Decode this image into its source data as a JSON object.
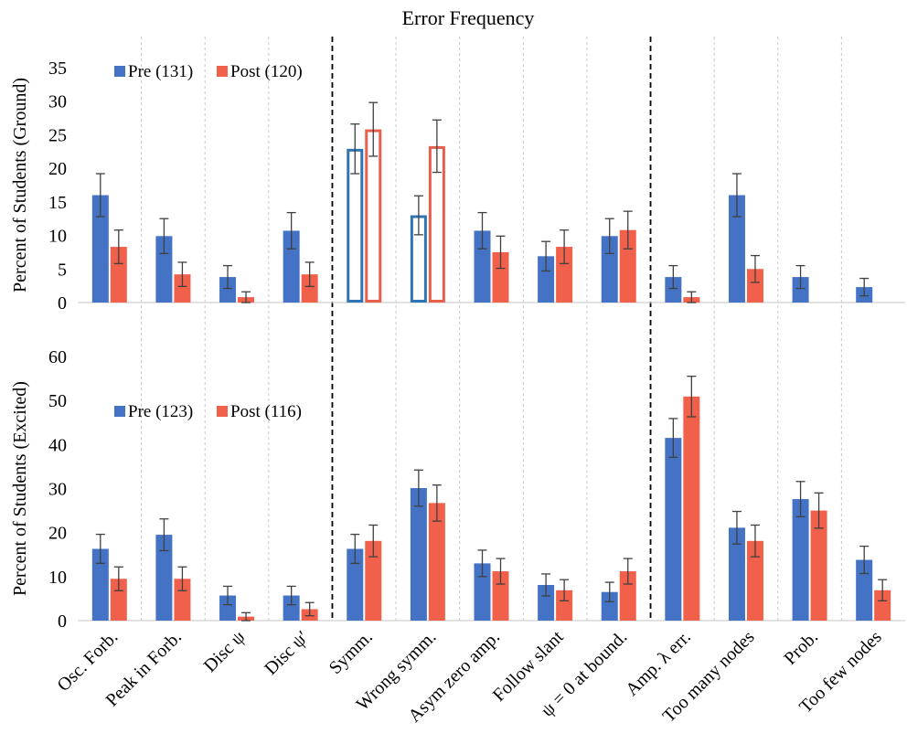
{
  "chart_data": {
    "type": "bar",
    "title": "Error Frequency",
    "categories": [
      "Osc. Forb.",
      "Peak in Forb.",
      "Disc ψ",
      "Disc ψ′",
      "Symm.",
      "Wrong symm.",
      "Asym zero amp.",
      "Follow slant",
      "ψ = 0 at bound.",
      "Amp. λ err.",
      "Too many nodes",
      "Prob.",
      "Too few nodes"
    ],
    "group_separators_after": [
      "Disc ψ′",
      "ψ = 0 at bound."
    ],
    "colors": {
      "pre": "#4472c4",
      "post": "#f0604a",
      "pre_outline": "#2e75b6",
      "post_outline": "#e8604c"
    },
    "panels": [
      {
        "ylabel": "Percent of Students (Ground)",
        "ylim": [
          0,
          35
        ],
        "yticks": [
          0,
          5,
          10,
          15,
          20,
          25,
          30,
          35
        ],
        "grid": false,
        "legend_position": "top-left",
        "outlined_categories": [
          "Symm.",
          "Wrong symm."
        ],
        "series": [
          {
            "name": "Pre (131)",
            "values": [
              16.0,
              9.9,
              3.8,
              10.7,
              22.9,
              13.0,
              10.7,
              6.9,
              9.9,
              3.8,
              16.0,
              3.8,
              2.3
            ],
            "errors": [
              3.2,
              2.6,
              1.7,
              2.7,
              3.7,
              2.9,
              2.7,
              2.2,
              2.6,
              1.7,
              3.2,
              1.7,
              1.3
            ]
          },
          {
            "name": "Post (120)",
            "values": [
              8.3,
              4.2,
              0.8,
              4.2,
              25.8,
              23.3,
              7.5,
              8.3,
              10.8,
              0.8,
              5.0,
              0.0,
              0.0
            ],
            "errors": [
              2.5,
              1.8,
              0.8,
              1.8,
              4.0,
              3.9,
              2.4,
              2.5,
              2.8,
              0.8,
              2.0,
              0.0,
              0.0
            ]
          }
        ]
      },
      {
        "ylabel": "Percent of Students (Excited)",
        "ylim": [
          0,
          60
        ],
        "yticks": [
          0,
          10,
          20,
          30,
          40,
          50,
          60
        ],
        "grid": false,
        "legend_position": "top-left",
        "outlined_categories": [],
        "series": [
          {
            "name": "Pre (123)",
            "values": [
              16.3,
              19.5,
              5.7,
              5.7,
              16.3,
              30.1,
              13.0,
              8.1,
              6.5,
              41.5,
              21.1,
              27.6,
              13.8
            ],
            "errors": [
              3.3,
              3.6,
              2.1,
              2.1,
              3.3,
              4.1,
              3.0,
              2.5,
              2.2,
              4.4,
              3.7,
              4.0,
              3.1
            ]
          },
          {
            "name": "Post (116)",
            "values": [
              9.5,
              9.5,
              0.9,
              2.6,
              18.1,
              26.7,
              11.2,
              6.9,
              11.2,
              50.9,
              18.1,
              25.0,
              6.9
            ],
            "errors": [
              2.7,
              2.7,
              0.9,
              1.5,
              3.6,
              4.1,
              2.9,
              2.4,
              2.9,
              4.6,
              3.6,
              4.0,
              2.4
            ]
          }
        ]
      }
    ]
  }
}
